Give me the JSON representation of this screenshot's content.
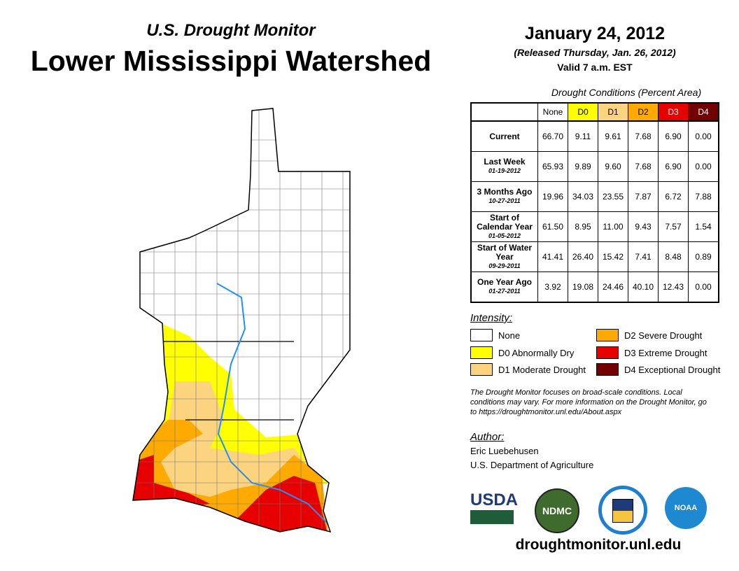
{
  "header": {
    "subtitle": "U.S. Drought Monitor",
    "title": "Lower Mississippi Watershed",
    "date": "January 24, 2012",
    "released": "(Released Thursday, Jan. 26, 2012)",
    "valid": "Valid 7 a.m. EST"
  },
  "table": {
    "caption": "Drought Conditions (Percent Area)",
    "columns": [
      "None",
      "D0",
      "D1",
      "D2",
      "D3",
      "D4"
    ],
    "column_colors": [
      "#ffffff",
      "#ffff00",
      "#fcd37f",
      "#ffaa00",
      "#e60000",
      "#730000"
    ],
    "rows": [
      {
        "label": "Current",
        "date": "",
        "values": [
          "66.70",
          "9.11",
          "9.61",
          "7.68",
          "6.90",
          "0.00"
        ]
      },
      {
        "label": "Last Week",
        "date": "01-19-2012",
        "values": [
          "65.93",
          "9.89",
          "9.60",
          "7.68",
          "6.90",
          "0.00"
        ]
      },
      {
        "label": "3 Months Ago",
        "date": "10-27-2011",
        "values": [
          "19.96",
          "34.03",
          "23.55",
          "7.87",
          "6.72",
          "7.88"
        ]
      },
      {
        "label": "Start of Calendar Year",
        "date": "01-05-2012",
        "values": [
          "61.50",
          "8.95",
          "11.00",
          "9.43",
          "7.57",
          "1.54"
        ]
      },
      {
        "label": "Start of Water Year",
        "date": "09-29-2011",
        "values": [
          "41.41",
          "26.40",
          "15.42",
          "7.41",
          "8.48",
          "0.89"
        ]
      },
      {
        "label": "One Year Ago",
        "date": "01-27-2011",
        "values": [
          "3.92",
          "19.08",
          "24.46",
          "40.10",
          "12.43",
          "0.00"
        ]
      }
    ]
  },
  "legend": {
    "title": "Intensity:",
    "items": [
      {
        "label": "None",
        "color": "#ffffff"
      },
      {
        "label": "D0 Abnormally Dry",
        "color": "#ffff00"
      },
      {
        "label": "D1 Moderate Drought",
        "color": "#fcd37f"
      },
      {
        "label": "D2 Severe Drought",
        "color": "#ffaa00"
      },
      {
        "label": "D3 Extreme Drought",
        "color": "#e60000"
      },
      {
        "label": "D4 Exceptional Drought",
        "color": "#730000"
      }
    ]
  },
  "note": "The Drought Monitor focuses on broad-scale conditions. Local conditions may vary. For more information on the Drought Monitor, go to https://droughtmonitor.unl.edu/About.aspx",
  "author": {
    "heading": "Author:",
    "name": "Eric Luebehusen",
    "org": "U.S. Department of Agriculture"
  },
  "logos": {
    "usda": "USDA",
    "ndmc": "NDMC",
    "noaa": "NOAA"
  },
  "url": "droughtmonitor.unl.edu"
}
